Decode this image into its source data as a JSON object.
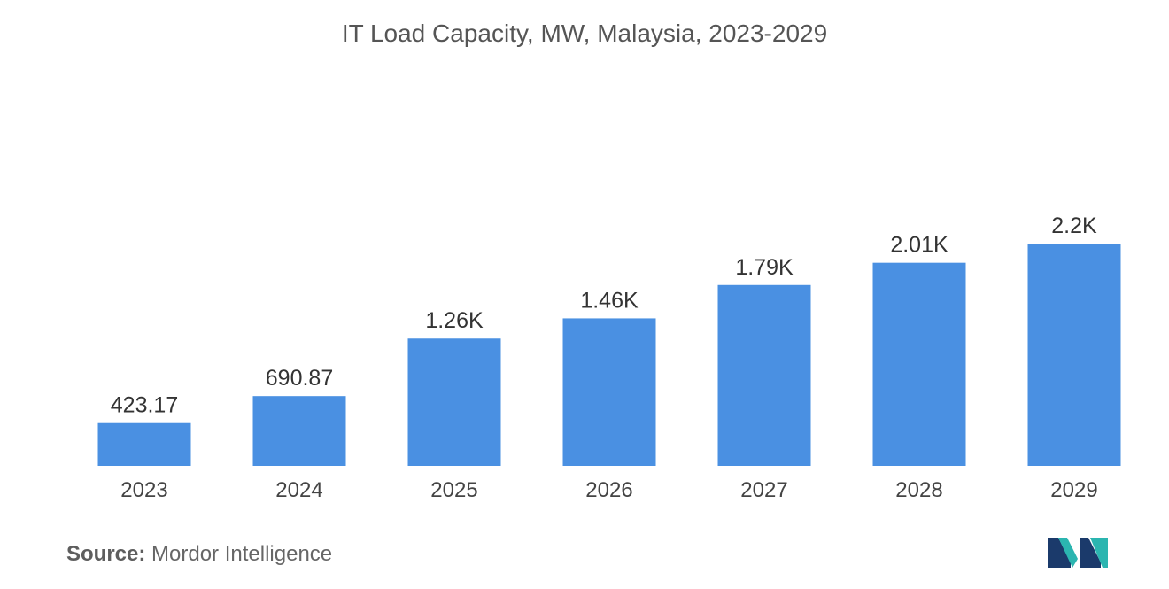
{
  "chart_data": {
    "type": "bar",
    "title": "IT Load Capacity, MW, Malaysia, 2023-2029",
    "xlabel": "",
    "ylabel": "",
    "categories": [
      "2023",
      "2024",
      "2025",
      "2026",
      "2027",
      "2028",
      "2029"
    ],
    "values": [
      423.17,
      690.87,
      1260,
      1460,
      1790,
      2010,
      2200
    ],
    "data_labels": [
      "423.17",
      "690.87",
      "1.26K",
      "1.46K",
      "1.79K",
      "2.01K",
      "2.2K"
    ],
    "ylim": [
      0,
      2200
    ],
    "grid": false,
    "legend": "none",
    "bar_color": "#4a90e2"
  },
  "source": {
    "label": "Source:",
    "text": "Mordor Intelligence"
  },
  "logo": {
    "icon": "mordor-intelligence-logo-icon",
    "colors": [
      "#1b3a6b",
      "#2bb5b0"
    ]
  }
}
